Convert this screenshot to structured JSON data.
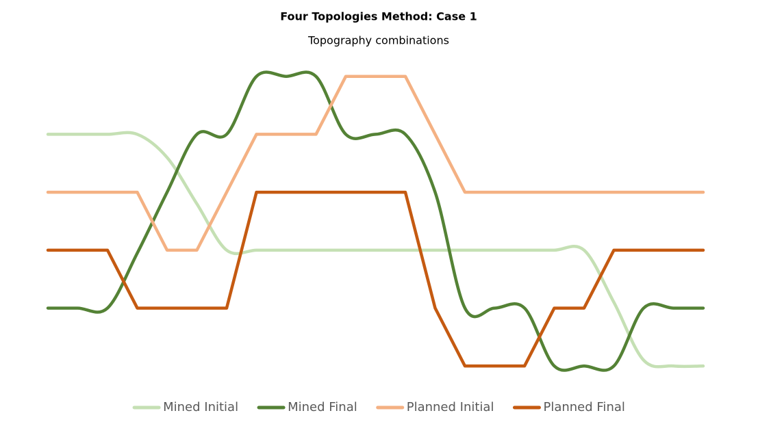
{
  "chart_data": {
    "type": "line",
    "title": "Four Topologies Method: Case 1",
    "subtitle": "Topography combinations",
    "ylim": [
      0,
      7
    ],
    "legend": "bottom",
    "series": [
      {
        "name": "Mined Initial",
        "color": "#c5e0b4",
        "smooth": true,
        "values": [
          5,
          5,
          5,
          5,
          4.6,
          3.8,
          3,
          3,
          3,
          3,
          3,
          3,
          3,
          3,
          3,
          3,
          3,
          3,
          3,
          2.1,
          1.1,
          1,
          1
        ]
      },
      {
        "name": "Mined Final",
        "color": "#548235",
        "smooth": true,
        "values": [
          2,
          2,
          2,
          2.95,
          4,
          5,
          5,
          6,
          6,
          6,
          5,
          5,
          5,
          4,
          2,
          2,
          2,
          1,
          1,
          1,
          2,
          2,
          2
        ]
      },
      {
        "name": "Planned Initial",
        "color": "#f4b183",
        "smooth": false,
        "values": [
          4,
          4,
          4,
          4,
          3,
          3,
          4,
          5,
          5,
          5,
          6,
          6,
          6,
          5,
          4,
          4,
          4,
          4,
          4,
          4,
          4,
          4,
          4
        ]
      },
      {
        "name": "Planned Final",
        "color": "#c55a11",
        "smooth": false,
        "values": [
          3,
          3,
          3,
          2,
          2,
          2,
          2,
          4,
          4,
          4,
          4,
          4,
          4,
          2,
          1,
          1,
          1,
          2,
          2,
          3,
          3,
          3,
          3
        ]
      }
    ]
  }
}
